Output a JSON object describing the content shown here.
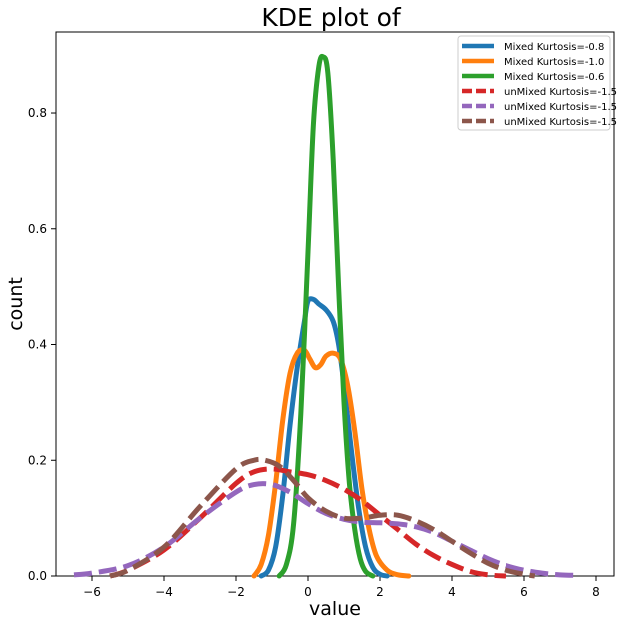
{
  "chart_data": {
    "type": "line",
    "title": "KDE plot of",
    "xlabel": "value",
    "ylabel": "count",
    "xlim": [
      -7.0,
      8.5
    ],
    "ylim": [
      0,
      0.94
    ],
    "xticks": [
      -6,
      -4,
      -2,
      0,
      2,
      4,
      6,
      8
    ],
    "yticks": [
      0.0,
      0.2,
      0.4,
      0.6,
      0.8
    ],
    "xtick_labels": [
      "−6",
      "−4",
      "−2",
      "0",
      "2",
      "4",
      "6",
      "8"
    ],
    "ytick_labels": [
      "0.0",
      "0.2",
      "0.4",
      "0.6",
      "0.8"
    ],
    "grid": false,
    "legend_position": "top-right",
    "series": [
      {
        "name": "Mixed Kurtosis=-0.8",
        "color": "#1f77b4",
        "dashed": false,
        "points": [
          [
            -1.3,
            0.0
          ],
          [
            -1.1,
            0.01
          ],
          [
            -0.9,
            0.05
          ],
          [
            -0.7,
            0.14
          ],
          [
            -0.5,
            0.26
          ],
          [
            -0.3,
            0.36
          ],
          [
            -0.1,
            0.44
          ],
          [
            0.0,
            0.475
          ],
          [
            0.15,
            0.478
          ],
          [
            0.3,
            0.47
          ],
          [
            0.5,
            0.46
          ],
          [
            0.7,
            0.44
          ],
          [
            0.85,
            0.4
          ],
          [
            1.0,
            0.33
          ],
          [
            1.2,
            0.22
          ],
          [
            1.4,
            0.12
          ],
          [
            1.6,
            0.05
          ],
          [
            1.8,
            0.015
          ],
          [
            2.0,
            0.003
          ],
          [
            2.2,
            0.0
          ]
        ]
      },
      {
        "name": "Mixed Kurtosis=-1.0",
        "color": "#ff7f0e",
        "dashed": false,
        "points": [
          [
            -1.5,
            0.0
          ],
          [
            -1.3,
            0.02
          ],
          [
            -1.1,
            0.07
          ],
          [
            -0.9,
            0.16
          ],
          [
            -0.7,
            0.27
          ],
          [
            -0.5,
            0.35
          ],
          [
            -0.3,
            0.385
          ],
          [
            -0.1,
            0.39
          ],
          [
            0.05,
            0.375
          ],
          [
            0.2,
            0.36
          ],
          [
            0.35,
            0.365
          ],
          [
            0.5,
            0.38
          ],
          [
            0.7,
            0.385
          ],
          [
            0.9,
            0.375
          ],
          [
            1.1,
            0.33
          ],
          [
            1.3,
            0.25
          ],
          [
            1.5,
            0.15
          ],
          [
            1.7,
            0.08
          ],
          [
            1.9,
            0.035
          ],
          [
            2.2,
            0.01
          ],
          [
            2.5,
            0.002
          ],
          [
            2.8,
            0.0
          ]
        ]
      },
      {
        "name": "Mixed Kurtosis=-0.6",
        "color": "#2ca02c",
        "dashed": false,
        "points": [
          [
            -0.8,
            0.0
          ],
          [
            -0.6,
            0.02
          ],
          [
            -0.4,
            0.09
          ],
          [
            -0.2,
            0.28
          ],
          [
            0.0,
            0.56
          ],
          [
            0.15,
            0.78
          ],
          [
            0.3,
            0.88
          ],
          [
            0.42,
            0.897
          ],
          [
            0.55,
            0.87
          ],
          [
            0.7,
            0.72
          ],
          [
            0.85,
            0.5
          ],
          [
            1.0,
            0.3
          ],
          [
            1.15,
            0.16
          ],
          [
            1.3,
            0.08
          ],
          [
            1.45,
            0.03
          ],
          [
            1.6,
            0.008
          ],
          [
            1.8,
            0.0
          ]
        ]
      },
      {
        "name": "unMixed Kurtosis=-1.5",
        "color": "#d62728",
        "dashed": true,
        "points": [
          [
            -5.5,
            0.0
          ],
          [
            -5.0,
            0.01
          ],
          [
            -4.0,
            0.045
          ],
          [
            -3.0,
            0.1
          ],
          [
            -2.0,
            0.16
          ],
          [
            -1.5,
            0.18
          ],
          [
            -1.0,
            0.185
          ],
          [
            -0.5,
            0.18
          ],
          [
            0.0,
            0.175
          ],
          [
            0.5,
            0.165
          ],
          [
            1.0,
            0.15
          ],
          [
            1.5,
            0.13
          ],
          [
            2.0,
            0.105
          ],
          [
            2.5,
            0.08
          ],
          [
            3.0,
            0.055
          ],
          [
            3.5,
            0.035
          ],
          [
            4.0,
            0.02
          ],
          [
            4.5,
            0.008
          ],
          [
            5.0,
            0.002
          ],
          [
            5.5,
            0.0
          ]
        ]
      },
      {
        "name": "unMixed Kurtosis=-1.5",
        "color": "#9467bd",
        "dashed": true,
        "points": [
          [
            -6.5,
            0.002
          ],
          [
            -6.0,
            0.005
          ],
          [
            -5.0,
            0.018
          ],
          [
            -4.0,
            0.05
          ],
          [
            -3.0,
            0.1
          ],
          [
            -2.0,
            0.145
          ],
          [
            -1.5,
            0.158
          ],
          [
            -1.0,
            0.158
          ],
          [
            -0.5,
            0.145
          ],
          [
            0.0,
            0.125
          ],
          [
            0.5,
            0.108
          ],
          [
            1.0,
            0.098
          ],
          [
            1.5,
            0.093
          ],
          [
            2.0,
            0.092
          ],
          [
            2.5,
            0.09
          ],
          [
            3.0,
            0.085
          ],
          [
            3.5,
            0.075
          ],
          [
            4.0,
            0.06
          ],
          [
            4.5,
            0.045
          ],
          [
            5.0,
            0.03
          ],
          [
            5.5,
            0.018
          ],
          [
            6.0,
            0.01
          ],
          [
            6.5,
            0.005
          ],
          [
            7.0,
            0.002
          ],
          [
            7.5,
            0.001
          ]
        ]
      },
      {
        "name": "unMixed Kurtosis=-1.5",
        "color": "#8c564b",
        "dashed": true,
        "points": [
          [
            -5.5,
            0.0
          ],
          [
            -5.0,
            0.01
          ],
          [
            -4.0,
            0.05
          ],
          [
            -3.0,
            0.12
          ],
          [
            -2.0,
            0.185
          ],
          [
            -1.5,
            0.2
          ],
          [
            -1.2,
            0.2
          ],
          [
            -0.8,
            0.19
          ],
          [
            -0.4,
            0.165
          ],
          [
            0.0,
            0.135
          ],
          [
            0.5,
            0.112
          ],
          [
            1.0,
            0.1
          ],
          [
            1.5,
            0.1
          ],
          [
            2.0,
            0.105
          ],
          [
            2.5,
            0.105
          ],
          [
            3.0,
            0.095
          ],
          [
            3.5,
            0.08
          ],
          [
            4.0,
            0.06
          ],
          [
            4.5,
            0.04
          ],
          [
            5.0,
            0.022
          ],
          [
            5.5,
            0.01
          ],
          [
            6.0,
            0.003
          ],
          [
            6.3,
            0.0
          ]
        ]
      }
    ]
  }
}
